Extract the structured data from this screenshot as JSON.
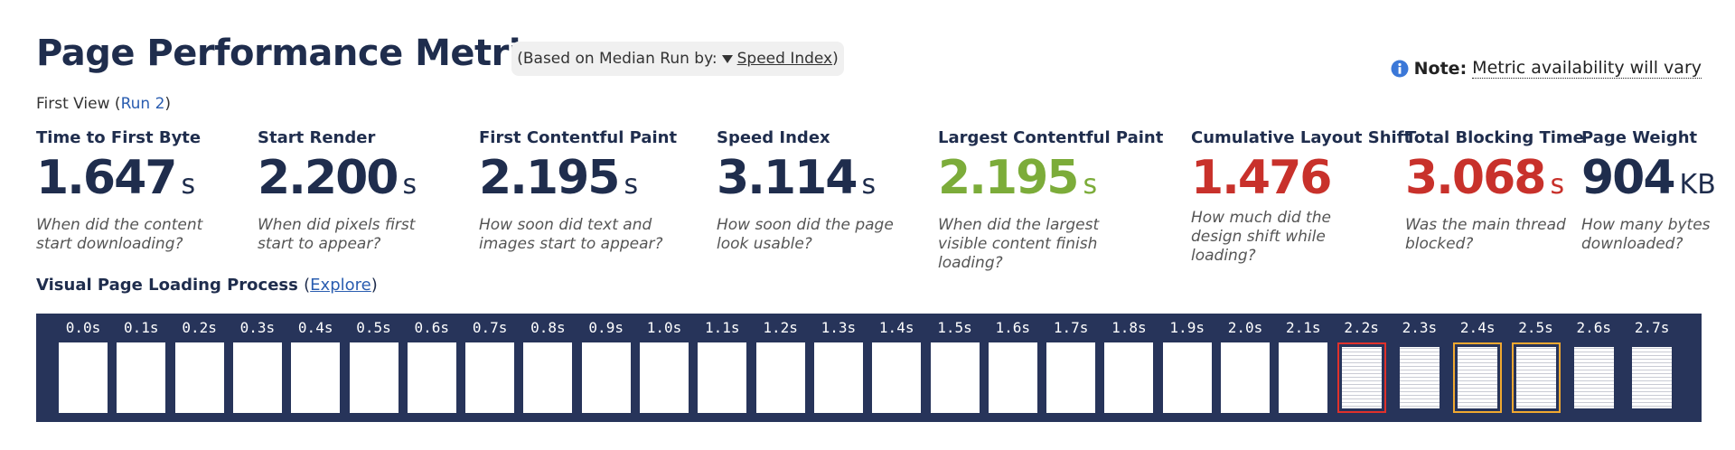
{
  "header": {
    "title": "Page Performance Metrics",
    "median_pill": {
      "prefix": "(Based on Median Run by:",
      "selector": "Speed Index",
      "suffix": ")"
    },
    "note": {
      "label": "Note:",
      "text": "Metric availability will vary"
    }
  },
  "run_info": {
    "text": "First View (",
    "link": "Run 2",
    "close": ")"
  },
  "metrics": [
    {
      "label": "Time to First Byte",
      "value": "1.647",
      "unit": "s",
      "description": "When did the content start downloading?",
      "color": "#1f2d4d"
    },
    {
      "label": "Start Render",
      "value": "2.200",
      "unit": "s",
      "description": "When did pixels first start to appear?",
      "color": "#1f2d4d"
    },
    {
      "label": "First Contentful Paint",
      "value": "2.195",
      "unit": "s",
      "description": "How soon did text and images start to appear?",
      "color": "#1f2d4d"
    },
    {
      "label": "Speed Index",
      "value": "3.114",
      "unit": "s",
      "description": "How soon did the page look usable?",
      "color": "#1f2d4d"
    },
    {
      "label": "Largest Contentful Paint",
      "value": "2.195",
      "unit": "s",
      "description": "When did the largest visible content finish loading?",
      "color": "#7cac3a"
    },
    {
      "label": "Cumulative Layout Shift",
      "value": "1.476",
      "unit": "",
      "description": "How much did the design shift while loading?",
      "color": "#c8312b"
    },
    {
      "label": "Total Blocking Time",
      "value": "3.068",
      "unit": "s",
      "description": "Was the main thread blocked?",
      "color": "#c8312b"
    },
    {
      "label": "Page Weight",
      "value": "904",
      "unit": "KB",
      "description": "How many bytes downloaded?",
      "color": "#1f2d4d"
    }
  ],
  "filmstrip": {
    "title": "Visual Page Loading Process",
    "open": "(",
    "link": "Explore",
    "close": ")",
    "frames": [
      {
        "time": "0.0s",
        "thumbnail": "blank"
      },
      {
        "time": "0.1s",
        "thumbnail": "blank"
      },
      {
        "time": "0.2s",
        "thumbnail": "blank"
      },
      {
        "time": "0.3s",
        "thumbnail": "blank"
      },
      {
        "time": "0.4s",
        "thumbnail": "blank"
      },
      {
        "time": "0.5s",
        "thumbnail": "blank"
      },
      {
        "time": "0.6s",
        "thumbnail": "blank"
      },
      {
        "time": "0.7s",
        "thumbnail": "blank"
      },
      {
        "time": "0.8s",
        "thumbnail": "blank"
      },
      {
        "time": "0.9s",
        "thumbnail": "blank"
      },
      {
        "time": "1.0s",
        "thumbnail": "blank"
      },
      {
        "time": "1.1s",
        "thumbnail": "blank"
      },
      {
        "time": "1.2s",
        "thumbnail": "blank"
      },
      {
        "time": "1.3s",
        "thumbnail": "blank"
      },
      {
        "time": "1.4s",
        "thumbnail": "blank"
      },
      {
        "time": "1.5s",
        "thumbnail": "blank"
      },
      {
        "time": "1.6s",
        "thumbnail": "blank"
      },
      {
        "time": "1.7s",
        "thumbnail": "blank"
      },
      {
        "time": "1.8s",
        "thumbnail": "blank"
      },
      {
        "time": "1.9s",
        "thumbnail": "blank"
      },
      {
        "time": "2.0s",
        "thumbnail": "blank"
      },
      {
        "time": "2.1s",
        "thumbnail": "blank"
      },
      {
        "time": "2.2s",
        "thumbnail": "text",
        "border": "#e0312b"
      },
      {
        "time": "2.3s",
        "thumbnail": "text"
      },
      {
        "time": "2.4s",
        "thumbnail": "text",
        "border": "#f0a830"
      },
      {
        "time": "2.5s",
        "thumbnail": "text",
        "border": "#f0a830"
      },
      {
        "time": "2.6s",
        "thumbnail": "text"
      },
      {
        "time": "2.7s",
        "thumbnail": "text"
      }
    ]
  }
}
